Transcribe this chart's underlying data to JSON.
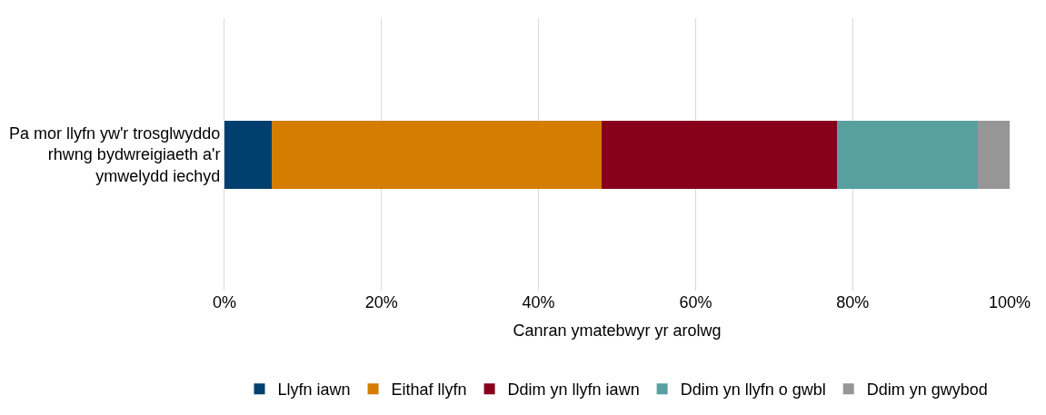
{
  "chart_data": {
    "type": "bar",
    "orientation": "horizontal",
    "stacked": true,
    "categories": [
      "Pa mor llyfn yw'r trosglwyddo rhwng bydwreigiaeth a'r ymwelydd iechyd"
    ],
    "xlabel": "Canran ymatebwyr yr arolwg",
    "xlim": [
      0,
      100
    ],
    "xticks": [
      {
        "value": 0,
        "label": "0%"
      },
      {
        "value": 20,
        "label": "20%"
      },
      {
        "value": 40,
        "label": "40%"
      },
      {
        "value": 60,
        "label": "60%"
      },
      {
        "value": 80,
        "label": "80%"
      },
      {
        "value": 100,
        "label": "100%"
      }
    ],
    "grid": "x",
    "legend": "bottom",
    "series": [
      {
        "name": "Llyfn iawn",
        "color": "#003f6e",
        "values": [
          6
        ]
      },
      {
        "name": "Eithaf llyfn",
        "color": "#d47d00",
        "values": [
          42
        ]
      },
      {
        "name": "Ddim yn llyfn iawn",
        "color": "#87001c",
        "values": [
          30
        ]
      },
      {
        "name": "Ddim yn llyfn o gwbl",
        "color": "#58a0a0",
        "values": [
          18
        ]
      },
      {
        "name": "Ddim yn gwybod",
        "color": "#969696",
        "values": [
          4
        ]
      }
    ]
  }
}
